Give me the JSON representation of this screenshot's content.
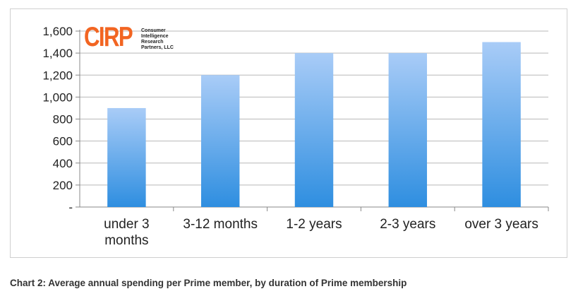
{
  "chart_data": {
    "type": "bar",
    "categories": [
      "under 3 months",
      "3-12 months",
      "1-2 years",
      "2-3 years",
      "over 3 years"
    ],
    "category_lines": [
      [
        "under 3",
        "months"
      ],
      [
        "3-12 months"
      ],
      [
        "1-2 years"
      ],
      [
        "2-3 years"
      ],
      [
        "over 3 years"
      ]
    ],
    "values": [
      900,
      1200,
      1400,
      1400,
      1500
    ],
    "ylim": [
      0,
      1600
    ],
    "yticks": [
      0,
      200,
      400,
      600,
      800,
      1000,
      1200,
      1400,
      1600
    ],
    "ytick_labels": [
      "-",
      "200",
      "400",
      "600",
      "800",
      "1,000",
      "1,200",
      "1,400",
      "1,600"
    ],
    "grid": true,
    "bar_color_top": "#a9ccf7",
    "bar_color_bottom": "#2e8ee0",
    "xlabel": "",
    "ylabel": ""
  },
  "logo": {
    "mark": "CIRP",
    "lines": [
      "Consumer",
      "Intelligence",
      "Research",
      "Partners, LLC"
    ],
    "color": "#f26522"
  },
  "caption": "Chart 2: Average annual spending per Prime member, by duration of Prime membership"
}
